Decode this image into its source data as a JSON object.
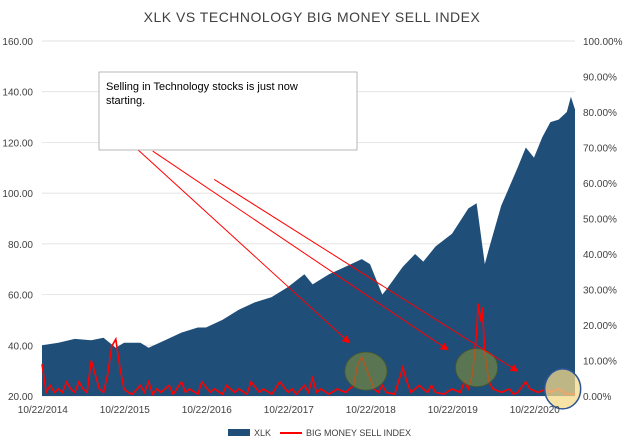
{
  "chart_data": {
    "type": "area",
    "title": "XLK VS TECHNOLOGY BIG MONEY SELL INDEX",
    "x_labels": [
      "10/22/2014",
      "10/22/2015",
      "10/22/2016",
      "10/22/2017",
      "10/22/2018",
      "10/22/2019",
      "10/22/2020"
    ],
    "left_axis": {
      "ylim": [
        20,
        160
      ],
      "ticks": [
        "20.00",
        "40.00",
        "60.00",
        "80.00",
        "100.00",
        "120.00",
        "140.00",
        "160.00"
      ]
    },
    "right_axis": {
      "ylim": [
        0,
        100
      ],
      "ticks": [
        "0.00%",
        "10.00%",
        "20.00%",
        "30.00%",
        "40.00%",
        "50.00%",
        "60.00%",
        "70.00%",
        "80.00%",
        "90.00%",
        "100.00%"
      ]
    },
    "series": [
      {
        "name": "XLK",
        "kind": "area",
        "axis": "left",
        "color": "#1f4e79",
        "points": [
          [
            2014.8,
            40
          ],
          [
            2015.0,
            41
          ],
          [
            2015.2,
            42.5
          ],
          [
            2015.4,
            42
          ],
          [
            2015.55,
            43
          ],
          [
            2015.7,
            39
          ],
          [
            2015.8,
            41
          ],
          [
            2016.0,
            41
          ],
          [
            2016.1,
            39
          ],
          [
            2016.3,
            42
          ],
          [
            2016.5,
            45
          ],
          [
            2016.7,
            47
          ],
          [
            2016.8,
            47
          ],
          [
            2017.0,
            50
          ],
          [
            2017.2,
            54
          ],
          [
            2017.4,
            57
          ],
          [
            2017.6,
            59
          ],
          [
            2017.8,
            63
          ],
          [
            2018.0,
            68
          ],
          [
            2018.1,
            64
          ],
          [
            2018.3,
            68
          ],
          [
            2018.5,
            71
          ],
          [
            2018.7,
            74
          ],
          [
            2018.8,
            72
          ],
          [
            2018.95,
            60
          ],
          [
            2019.0,
            62
          ],
          [
            2019.2,
            71
          ],
          [
            2019.35,
            76
          ],
          [
            2019.45,
            73
          ],
          [
            2019.6,
            79
          ],
          [
            2019.8,
            84
          ],
          [
            2020.0,
            94
          ],
          [
            2020.1,
            96
          ],
          [
            2020.2,
            72
          ],
          [
            2020.25,
            78
          ],
          [
            2020.4,
            95
          ],
          [
            2020.6,
            110
          ],
          [
            2020.7,
            118
          ],
          [
            2020.8,
            114
          ],
          [
            2020.9,
            122
          ],
          [
            2021.0,
            128
          ],
          [
            2021.1,
            129
          ],
          [
            2021.2,
            132
          ],
          [
            2021.25,
            138
          ],
          [
            2021.3,
            133
          ]
        ]
      },
      {
        "name": "BIG MONEY SELL INDEX",
        "kind": "line",
        "axis": "right",
        "color": "#ff0000",
        "points": [
          [
            2014.8,
            9
          ],
          [
            2014.85,
            1
          ],
          [
            2014.9,
            3
          ],
          [
            2014.95,
            1
          ],
          [
            2015.0,
            2
          ],
          [
            2015.05,
            1
          ],
          [
            2015.1,
            4
          ],
          [
            2015.15,
            2
          ],
          [
            2015.2,
            1
          ],
          [
            2015.25,
            4
          ],
          [
            2015.3,
            2
          ],
          [
            2015.35,
            1
          ],
          [
            2015.4,
            10
          ],
          [
            2015.45,
            6
          ],
          [
            2015.5,
            2
          ],
          [
            2015.55,
            1
          ],
          [
            2015.6,
            6
          ],
          [
            2015.65,
            14
          ],
          [
            2015.7,
            16
          ],
          [
            2015.75,
            8
          ],
          [
            2015.8,
            2
          ],
          [
            2015.85,
            1
          ],
          [
            2015.9,
            0.5
          ],
          [
            2016.0,
            3
          ],
          [
            2016.05,
            1
          ],
          [
            2016.1,
            4
          ],
          [
            2016.15,
            0.5
          ],
          [
            2016.2,
            2
          ],
          [
            2016.25,
            1
          ],
          [
            2016.35,
            3
          ],
          [
            2016.4,
            0.5
          ],
          [
            2016.5,
            4
          ],
          [
            2016.55,
            1
          ],
          [
            2016.6,
            2
          ],
          [
            2016.7,
            0.5
          ],
          [
            2016.75,
            4
          ],
          [
            2016.85,
            1
          ],
          [
            2016.9,
            2
          ],
          [
            2017.0,
            0.5
          ],
          [
            2017.05,
            3
          ],
          [
            2017.15,
            1
          ],
          [
            2017.2,
            2
          ],
          [
            2017.3,
            0.5
          ],
          [
            2017.35,
            4
          ],
          [
            2017.45,
            1
          ],
          [
            2017.5,
            2
          ],
          [
            2017.6,
            0.5
          ],
          [
            2017.7,
            4
          ],
          [
            2017.8,
            1
          ],
          [
            2017.85,
            2
          ],
          [
            2017.9,
            0.5
          ],
          [
            2018.0,
            3
          ],
          [
            2018.05,
            1
          ],
          [
            2018.1,
            5
          ],
          [
            2018.15,
            1
          ],
          [
            2018.2,
            2
          ],
          [
            2018.3,
            0.5
          ],
          [
            2018.4,
            2
          ],
          [
            2018.5,
            1
          ],
          [
            2018.6,
            3
          ],
          [
            2018.65,
            9
          ],
          [
            2018.7,
            11
          ],
          [
            2018.75,
            8
          ],
          [
            2018.8,
            5
          ],
          [
            2018.85,
            2
          ],
          [
            2018.9,
            1
          ],
          [
            2018.95,
            3
          ],
          [
            2019.0,
            1
          ],
          [
            2019.1,
            0.5
          ],
          [
            2019.2,
            8
          ],
          [
            2019.25,
            4
          ],
          [
            2019.3,
            1
          ],
          [
            2019.4,
            3
          ],
          [
            2019.5,
            1
          ],
          [
            2019.55,
            3
          ],
          [
            2019.6,
            1
          ],
          [
            2019.7,
            0.5
          ],
          [
            2019.8,
            2
          ],
          [
            2019.9,
            1
          ],
          [
            2019.95,
            4
          ],
          [
            2020.0,
            2
          ],
          [
            2020.05,
            6
          ],
          [
            2020.1,
            18
          ],
          [
            2020.12,
            26
          ],
          [
            2020.15,
            21
          ],
          [
            2020.17,
            25
          ],
          [
            2020.2,
            12
          ],
          [
            2020.25,
            4
          ],
          [
            2020.3,
            2
          ],
          [
            2020.4,
            1
          ],
          [
            2020.5,
            2
          ],
          [
            2020.55,
            0.5
          ],
          [
            2020.6,
            1
          ],
          [
            2020.7,
            4
          ],
          [
            2020.75,
            2
          ],
          [
            2020.85,
            1
          ],
          [
            2020.95,
            2
          ],
          [
            2021.0,
            1
          ],
          [
            2021.1,
            2
          ],
          [
            2021.2,
            0.5
          ],
          [
            2021.3,
            0.5
          ]
        ]
      }
    ],
    "annotations": {
      "callout_text": "Selling in Technology stocks is just now starting.",
      "arrows": [
        {
          "from": [
            2015.75,
            74
          ],
          "to": [
            2018.55,
            15
          ]
        },
        {
          "from": [
            2016.15,
            69
          ],
          "to": [
            2019.75,
            13
          ]
        },
        {
          "from": [
            2016.9,
            61
          ],
          "to": [
            2020.6,
            7
          ]
        }
      ],
      "highlights": [
        {
          "x": 2018.75,
          "y": 7,
          "color": "#7a8a3c"
        },
        {
          "x": 2020.1,
          "y": 8,
          "color": "#7a8a3c"
        },
        {
          "x": 2021.15,
          "y": 2,
          "color": "#f5d98a"
        }
      ]
    },
    "legend": {
      "position": "bottom-center",
      "entries": [
        "XLK",
        "BIG MONEY SELL INDEX"
      ]
    },
    "grid": true
  }
}
